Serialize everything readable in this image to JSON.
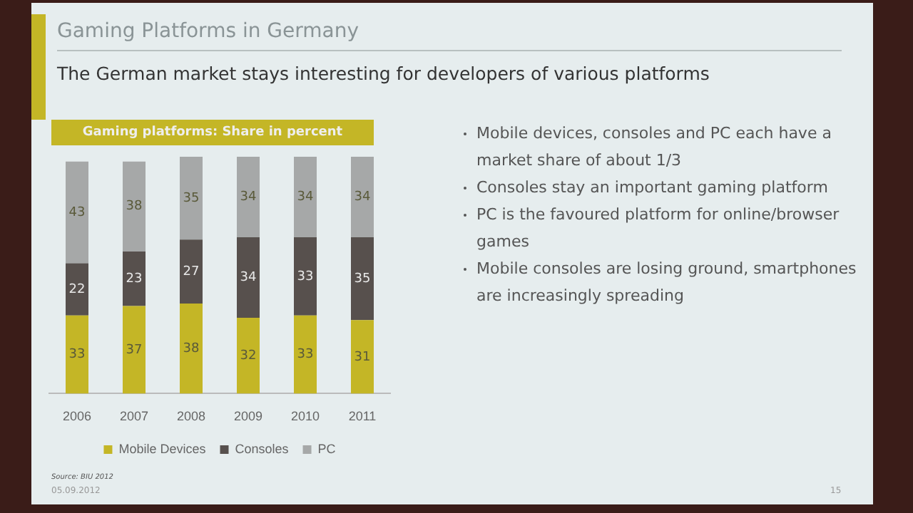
{
  "chart_data": {
    "type": "bar",
    "stacked": true,
    "title": "Gaming Platforms in Germany",
    "subtitle": "The German market stays interesting for developers of various platforms",
    "categories": [
      "2006",
      "2007",
      "2008",
      "2009",
      "2010",
      "2011"
    ],
    "series": [
      {
        "name": "Mobile Devices",
        "color": "#c4b626",
        "values": [
          33,
          37,
          38,
          32,
          33,
          31
        ]
      },
      {
        "name": "Consoles",
        "color": "#57504d",
        "values": [
          22,
          23,
          27,
          34,
          33,
          35
        ]
      },
      {
        "name": "PC",
        "color": "#a6a8a8",
        "values": [
          43,
          38,
          35,
          34,
          34,
          34
        ]
      }
    ],
    "data_labels": true,
    "legend": "bottom",
    "grid": false,
    "annotations": [
      "Gaming platforms: Share in percent",
      "Mobile devices, consoles and PC each have a market share of about 1/3",
      "Consoles stay an important gaming platform",
      "PC is the favoured platform for online/browser games",
      "Mobile consoles are losing ground, smartphones are increasingly spreading",
      "Source: BIU 2012",
      "05.09.2012",
      "15"
    ]
  }
}
